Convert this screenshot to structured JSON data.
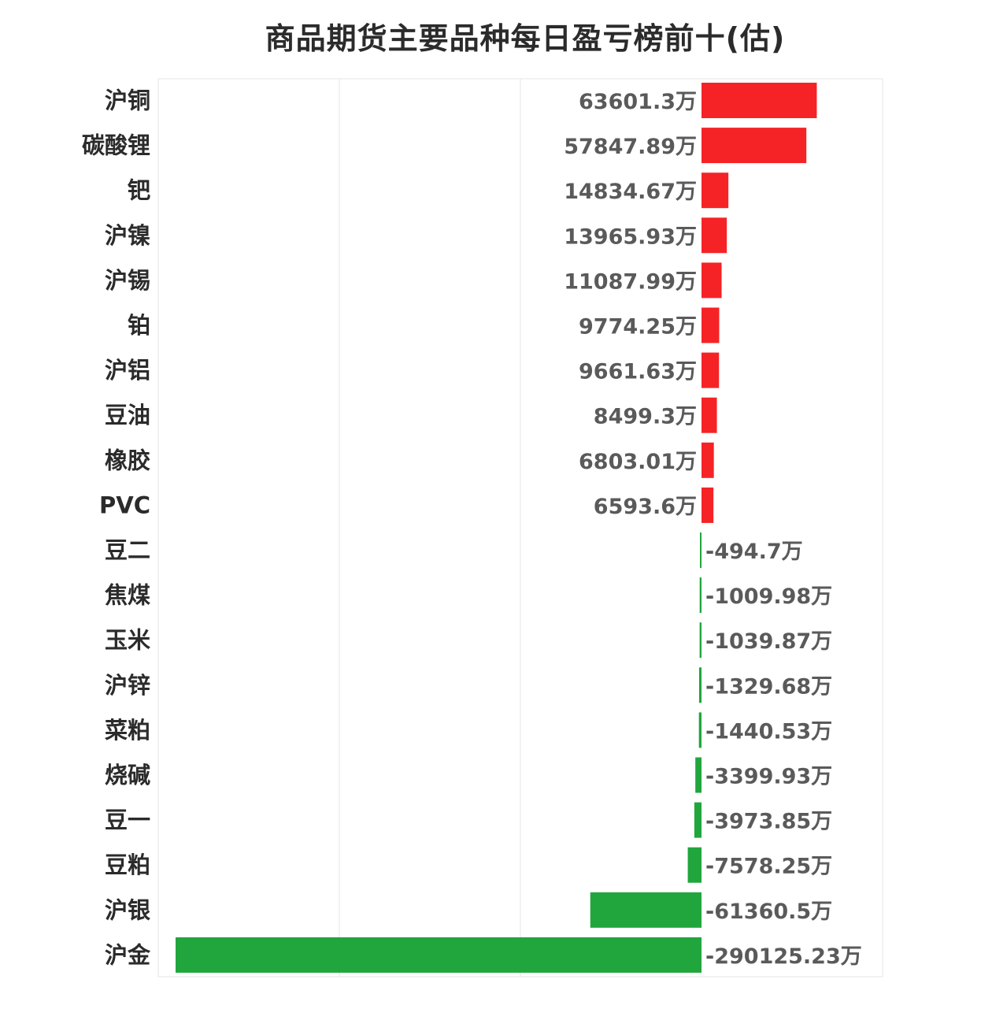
{
  "chart_data": {
    "type": "bar",
    "orientation": "horizontal",
    "title": "商品期货主要品种每日盈亏榜前十(估)",
    "unit": "万",
    "categories": [
      "沪铜",
      "碳酸锂",
      "钯",
      "沪镍",
      "沪锡",
      "铂",
      "沪铝",
      "豆油",
      "橡胶",
      "PVC",
      "豆二",
      "焦煤",
      "玉米",
      "沪锌",
      "菜粕",
      "烧碱",
      "豆一",
      "豆粕",
      "沪银",
      "沪金"
    ],
    "values": [
      63601.3,
      57847.89,
      14834.67,
      13965.93,
      11087.99,
      9774.25,
      9661.63,
      8499.3,
      6803.01,
      6593.6,
      -494.7,
      -1009.98,
      -1039.87,
      -1329.68,
      -1440.53,
      -3399.93,
      -3973.85,
      -7578.25,
      -61360.5,
      -290125.23
    ],
    "value_labels": [
      "63601.3万",
      "57847.89万",
      "14834.67万",
      "13965.93万",
      "11087.99万",
      "9774.25万",
      "9661.63万",
      "8499.3万",
      "6803.01万",
      "6593.6万",
      "-494.7万",
      "-1009.98万",
      "-1039.87万",
      "-1329.68万",
      "-1440.53万",
      "-3399.93万",
      "-3973.85万",
      "-7578.25万",
      "-61360.5万",
      "-290125.23万"
    ],
    "xlim": [
      -300000,
      100000
    ],
    "colors": {
      "positive": "#f52326",
      "negative": "#21a63d",
      "grid": "#e6e6e6",
      "category_text": "#2b2b2b",
      "label_text": "#5a5a5a"
    },
    "grid": true,
    "legend": "none"
  }
}
